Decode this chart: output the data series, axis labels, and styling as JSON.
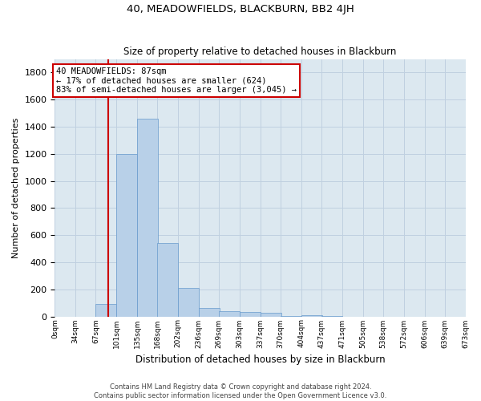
{
  "title": "40, MEADOWFIELDS, BLACKBURN, BB2 4JH",
  "subtitle": "Size of property relative to detached houses in Blackburn",
  "xlabel": "Distribution of detached houses by size in Blackburn",
  "ylabel": "Number of detached properties",
  "footer_line1": "Contains HM Land Registry data © Crown copyright and database right 2024.",
  "footer_line2": "Contains public sector information licensed under the Open Government Licence v3.0.",
  "bar_color": "#b8d0e8",
  "bar_edge_color": "#6699cc",
  "grid_color": "#c0d0e0",
  "background_color": "#dce8f0",
  "annotation_line1": "40 MEADOWFIELDS: 87sqm",
  "annotation_line2": "← 17% of detached houses are smaller (624)",
  "annotation_line3": "83% of semi-detached houses are larger (3,045) →",
  "annotation_box_color": "#ffffff",
  "annotation_border_color": "#cc0000",
  "red_line_x": 87,
  "red_line_color": "#cc0000",
  "bin_edges": [
    0,
    34,
    67,
    101,
    135,
    168,
    202,
    236,
    269,
    303,
    337,
    370,
    404,
    437,
    471,
    505,
    538,
    572,
    606,
    639,
    673
  ],
  "bin_labels": [
    "0sqm",
    "34sqm",
    "67sqm",
    "101sqm",
    "135sqm",
    "168sqm",
    "202sqm",
    "236sqm",
    "269sqm",
    "303sqm",
    "337sqm",
    "370sqm",
    "404sqm",
    "437sqm",
    "471sqm",
    "505sqm",
    "538sqm",
    "572sqm",
    "606sqm",
    "639sqm",
    "673sqm"
  ],
  "bar_heights": [
    0,
    0,
    90,
    1200,
    1460,
    540,
    210,
    65,
    40,
    30,
    25,
    5,
    10,
    5,
    0,
    0,
    0,
    0,
    0,
    0
  ],
  "ylim": [
    0,
    1900
  ],
  "yticks": [
    0,
    200,
    400,
    600,
    800,
    1000,
    1200,
    1400,
    1600,
    1800
  ]
}
